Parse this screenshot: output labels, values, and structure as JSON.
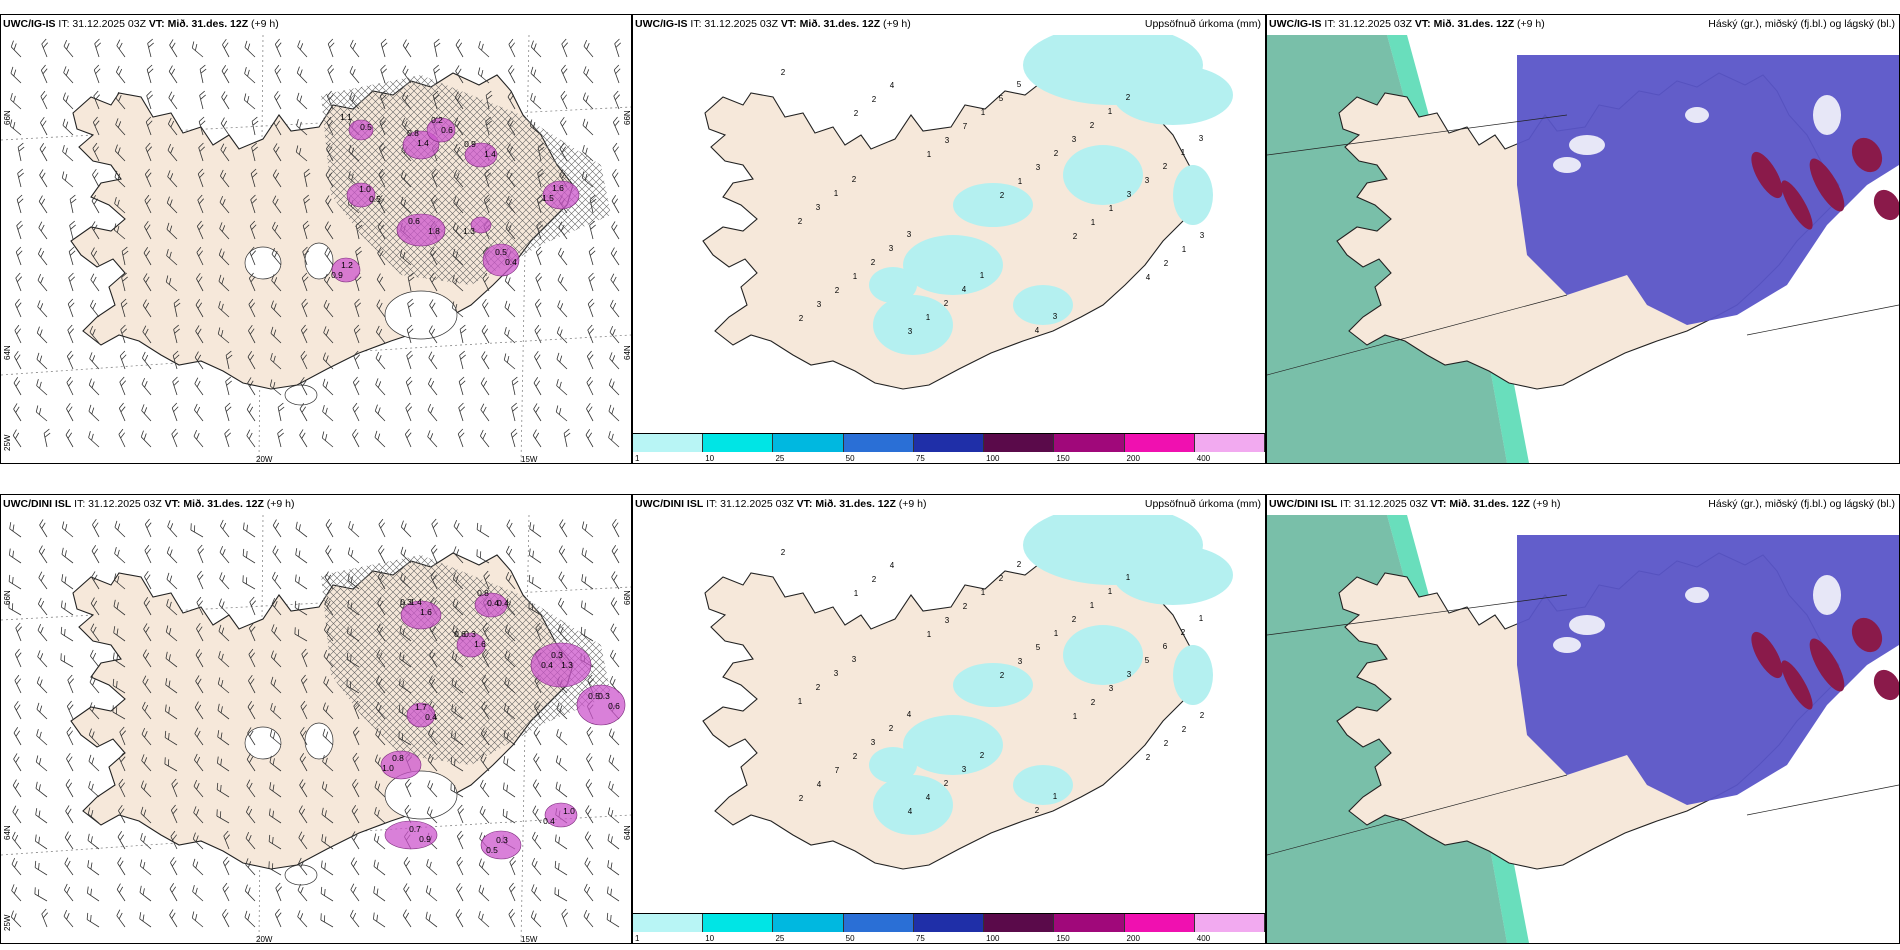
{
  "panels": [
    {
      "model": "UWC/IG-IS",
      "it": "IT: 31.12.2025 03Z",
      "vt_label": "VT:",
      "vt": "Mið. 31.des. 12Z",
      "lead": "(+9 h)",
      "subtitle": ""
    },
    {
      "model": "UWC/IG-IS",
      "it": "IT: 31.12.2025 03Z",
      "vt_label": "VT:",
      "vt": "Mið. 31.des. 12Z",
      "lead": "(+9 h)",
      "subtitle": "Uppsöfnuð úrkoma (mm)"
    },
    {
      "model": "UWC/IG-IS",
      "it": "IT: 31.12.2025 03Z",
      "vt_label": "VT:",
      "vt": "Mið. 31.des. 12Z",
      "lead": "(+9 h)",
      "subtitle": "Háský (gr.), miðský (fj.bl.) og lágský (bl.)"
    },
    {
      "model": "UWC/DINI ISL",
      "it": "IT: 31.12.2025 03Z",
      "vt_label": "VT:",
      "vt": "Mið. 31.des. 12Z",
      "lead": "(+9 h)",
      "subtitle": ""
    },
    {
      "model": "UWC/DINI ISL",
      "it": "IT: 31.12.2025 03Z",
      "vt_label": "VT:",
      "vt": "Mið. 31.des. 12Z",
      "lead": "(+9 h)",
      "subtitle": "Uppsöfnuð úrkoma (mm)"
    },
    {
      "model": "UWC/DINI ISL",
      "it": "IT: 31.12.2025 03Z",
      "vt_label": "VT:",
      "vt": "Mið. 31.des. 12Z",
      "lead": "(+9 h)",
      "subtitle": "Háský (gr.), miðský (fj.bl.) og lágský (bl.)"
    }
  ],
  "axes": {
    "lon_20": "20W",
    "lon_15": "15W",
    "lon_25": "25W",
    "lat_66": "66N",
    "lat_64": "64N"
  },
  "colorbar": {
    "ticks": [
      "1",
      "10",
      "25",
      "50",
      "75",
      "100",
      "150",
      "200",
      "400"
    ],
    "colors": [
      "#b8f5f5",
      "#00e5e5",
      "#00b8e0",
      "#2a6fd6",
      "#1f2fa8",
      "#5a0a4a",
      "#a0087a",
      "#f010b0",
      "#f2aaf0"
    ]
  },
  "colors": {
    "land": "#f6e8da",
    "precip_light": "#b4f0f0",
    "snow": "#cc55cc",
    "high_cloud": "#6ab8a0",
    "mid_cloud": "#5a55c8",
    "low_cloud": "#8a1a4a"
  },
  "labels": {
    "p0": [
      "1.1",
      "1.4",
      "0.9",
      "0.6",
      "0.6",
      "0.4",
      "1.6",
      "0.5",
      "1.2",
      "1.3",
      "0.5",
      "0.8",
      "1.4",
      "0.2",
      "1.8",
      "0.5",
      "1.5",
      "1.0",
      "0.9"
    ],
    "p3": [
      "0.3",
      "0.4",
      "0.6",
      "1.3",
      "0.5",
      "0.4",
      "0.8",
      "0.9",
      "0.3",
      "0.4",
      "1.6",
      "0.8",
      "1.6",
      "0.3",
      "0.6",
      "1.7",
      "1.0",
      "0.7",
      "0.5",
      "1.0",
      "1.4",
      "0.4",
      "0.3",
      "0.4",
      "0.3"
    ],
    "p1": [
      "2",
      "2",
      "1",
      "2",
      "2",
      "4",
      "2",
      "2",
      "3",
      "1",
      "1",
      "2",
      "3",
      "4",
      "7",
      "3",
      "1",
      "1",
      "2",
      "3",
      "1",
      "2",
      "3",
      "3",
      "1",
      "1",
      "5",
      "3",
      "3",
      "2",
      "2",
      "2",
      "5",
      "2",
      "2",
      "3",
      "3",
      "4",
      "4",
      "1",
      "1",
      "1",
      "3",
      "1",
      "3",
      "2",
      "3",
      "2"
    ],
    "p4": [
      "2",
      "1",
      "1",
      "2",
      "1",
      "2",
      "2",
      "2",
      "3",
      "3",
      "2",
      "2",
      "4",
      "4",
      "2",
      "5",
      "3",
      "2",
      "7",
      "4",
      "1",
      "1",
      "3",
      "2",
      "2",
      "4",
      "2",
      "2",
      "5",
      "1",
      "3",
      "2",
      "2",
      "1",
      "6",
      "2",
      "2",
      "3",
      "2",
      "1",
      "2",
      "3",
      "4",
      "2",
      "1",
      "1",
      "1",
      "3"
    ]
  }
}
